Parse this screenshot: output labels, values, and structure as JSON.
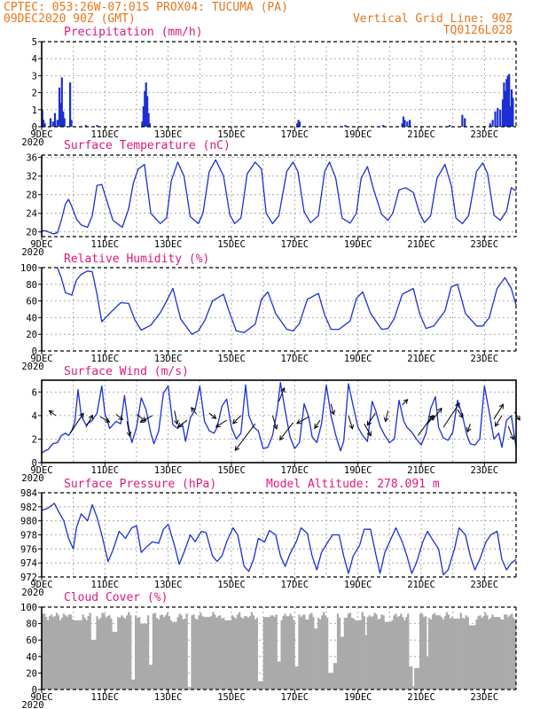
{
  "header": {
    "line1_left": "CPTEC:   053:26W-07:01S   PROX04: TUCUMA (PA)",
    "line2_left": "09DEC2020 90Z (GMT)",
    "line2_right": "Vertical Grid Line: 90Z",
    "line3_right": "TQ0126L028"
  },
  "x_axis": {
    "tick_labels": [
      "9DEC",
      "11DEC",
      "13DEC",
      "15DEC",
      "17DEC",
      "19DEC",
      "21DEC",
      "23DEC"
    ],
    "year_label": "2020",
    "range_days": [
      0,
      15
    ]
  },
  "chart_data": [
    {
      "type": "bar",
      "title": "Precipitation (mm/h)",
      "ylim": [
        0,
        5
      ],
      "yticks": [
        0,
        1,
        2,
        3,
        4,
        5
      ],
      "color": "#1b2fd6",
      "bars": [
        [
          0.02,
          1.0
        ],
        [
          0.06,
          0.4
        ],
        [
          0.1,
          0.2
        ],
        [
          0.28,
          0.5
        ],
        [
          0.36,
          0.3
        ],
        [
          0.42,
          0.8
        ],
        [
          0.5,
          0.4
        ],
        [
          0.56,
          2.3
        ],
        [
          0.6,
          1.4
        ],
        [
          0.64,
          2.9
        ],
        [
          0.68,
          0.9
        ],
        [
          0.72,
          0.5
        ],
        [
          0.9,
          2.6
        ],
        [
          0.94,
          0.4
        ],
        [
          1.4,
          0.1
        ],
        [
          1.75,
          0.1
        ],
        [
          3.18,
          0.3
        ],
        [
          3.22,
          1.2
        ],
        [
          3.26,
          2.1
        ],
        [
          3.3,
          2.6
        ],
        [
          3.34,
          1.8
        ],
        [
          3.38,
          0.8
        ],
        [
          3.42,
          0.2
        ],
        [
          8.08,
          0.2
        ],
        [
          8.12,
          0.4
        ],
        [
          8.16,
          0.3
        ],
        [
          9.6,
          0.1
        ],
        [
          10.8,
          0.1
        ],
        [
          11.4,
          0.2
        ],
        [
          11.44,
          0.6
        ],
        [
          11.48,
          0.4
        ],
        [
          11.56,
          0.3
        ],
        [
          11.64,
          0.4
        ],
        [
          12.9,
          0.1
        ],
        [
          13.3,
          0.7
        ],
        [
          13.38,
          0.5
        ],
        [
          14.18,
          0.2
        ],
        [
          14.26,
          0.4
        ],
        [
          14.34,
          0.9
        ],
        [
          14.42,
          1.1
        ],
        [
          14.5,
          1.0
        ],
        [
          14.58,
          1.6
        ],
        [
          14.62,
          2.6
        ],
        [
          14.66,
          2.1
        ],
        [
          14.7,
          2.8
        ],
        [
          14.74,
          3.0
        ],
        [
          14.78,
          3.1
        ],
        [
          14.82,
          1.2
        ],
        [
          14.86,
          2.2
        ],
        [
          14.9,
          1.7
        ]
      ]
    },
    {
      "type": "line",
      "title": "Surface Temperature (nC)",
      "ylim": [
        19,
        36.5
      ],
      "yticks": [
        20,
        24,
        28,
        32,
        36
      ],
      "color": "#1b2fd6",
      "x": [
        0,
        0.15,
        0.35,
        0.5,
        0.62,
        0.75,
        0.85,
        0.95,
        1.1,
        1.25,
        1.45,
        1.6,
        1.75,
        1.9,
        2.25,
        2.55,
        2.75,
        2.9,
        3.05,
        3.25,
        3.45,
        3.75,
        3.95,
        4.1,
        4.3,
        4.5,
        4.7,
        4.95,
        5.1,
        5.3,
        5.5,
        5.75,
        5.95,
        6.1,
        6.3,
        6.5,
        6.75,
        6.95,
        7.1,
        7.3,
        7.5,
        7.75,
        7.95,
        8.1,
        8.3,
        8.5,
        8.75,
        8.95,
        9.1,
        9.3,
        9.5,
        9.75,
        9.95,
        10.1,
        10.3,
        10.5,
        10.75,
        10.95,
        11.1,
        11.3,
        11.5,
        11.75,
        11.95,
        12.1,
        12.3,
        12.5,
        12.75,
        12.95,
        13.1,
        13.3,
        13.5,
        13.75,
        13.95,
        14.1,
        14.3,
        14.5,
        14.7,
        14.85,
        15.0
      ],
      "y": [
        20.3,
        20.2,
        19.6,
        19.8,
        22.5,
        26.0,
        27.0,
        25.5,
        22.8,
        21.5,
        21.0,
        23.5,
        30.0,
        30.2,
        22.5,
        21.0,
        25.0,
        30.5,
        33.5,
        34.5,
        24.0,
        21.8,
        23.0,
        31.0,
        35.0,
        32.0,
        23.3,
        21.8,
        24.0,
        33.0,
        35.5,
        32.0,
        23.7,
        21.8,
        23.0,
        32.5,
        35.0,
        33.5,
        24.0,
        21.8,
        23.5,
        33.0,
        35.0,
        33.0,
        24.3,
        22.0,
        23.5,
        33.0,
        35.0,
        31.5,
        23.0,
        21.9,
        24.0,
        31.5,
        34.0,
        29.0,
        23.8,
        22.5,
        24.0,
        29.0,
        29.5,
        28.5,
        24.0,
        22.0,
        23.5,
        31.5,
        34.5,
        30.0,
        23.0,
        21.8,
        23.5,
        33.0,
        34.8,
        32.5,
        23.6,
        22.5,
        24.5,
        29.5,
        28.8
      ]
    },
    {
      "type": "line",
      "title": "Relative Humidity (%)",
      "ylim": [
        0,
        100
      ],
      "yticks": [
        0,
        20,
        40,
        60,
        80,
        100
      ],
      "color": "#1b2fd6",
      "x": [
        0.5,
        0.62,
        0.75,
        0.95,
        1.1,
        1.25,
        1.45,
        1.6,
        1.75,
        1.9,
        2.2,
        2.5,
        2.75,
        2.95,
        3.15,
        3.45,
        3.75,
        3.95,
        4.15,
        4.4,
        4.75,
        4.95,
        5.15,
        5.4,
        5.75,
        5.95,
        6.15,
        6.4,
        6.75,
        6.95,
        7.15,
        7.4,
        7.75,
        7.95,
        8.15,
        8.4,
        8.75,
        8.95,
        9.15,
        9.4,
        9.75,
        9.95,
        10.15,
        10.4,
        10.75,
        10.95,
        11.15,
        11.4,
        11.75,
        11.95,
        12.15,
        12.4,
        12.75,
        12.95,
        13.15,
        13.4,
        13.75,
        13.95,
        14.15,
        14.4,
        14.65,
        14.85,
        15.0
      ],
      "y": [
        100,
        88,
        70,
        67,
        85,
        92,
        96,
        95,
        68,
        35,
        47,
        58,
        57,
        37,
        25,
        31,
        46,
        60,
        75,
        38,
        20,
        24,
        36,
        60,
        68,
        45,
        24,
        22,
        32,
        62,
        71,
        45,
        26,
        24,
        33,
        62,
        69,
        43,
        26,
        26,
        36,
        63,
        71,
        45,
        26,
        27,
        39,
        68,
        75,
        45,
        27,
        30,
        48,
        77,
        80,
        45,
        30,
        30,
        40,
        75,
        88,
        75,
        55
      ]
    },
    {
      "type": "line",
      "title": "Surface Wind (m/s)",
      "ylim": [
        0,
        7
      ],
      "yticks": [
        0,
        2,
        4,
        6
      ],
      "color": "#1b2fd6",
      "x": [
        0,
        0.1,
        0.2,
        0.35,
        0.5,
        0.62,
        0.75,
        0.85,
        0.95,
        1.05,
        1.15,
        1.25,
        1.4,
        1.5,
        1.6,
        1.75,
        1.9,
        2.0,
        2.15,
        2.35,
        2.5,
        2.62,
        2.75,
        2.85,
        3.0,
        3.15,
        3.3,
        3.45,
        3.55,
        3.7,
        3.85,
        4.0,
        4.15,
        4.3,
        4.45,
        4.55,
        4.7,
        4.85,
        5.0,
        5.15,
        5.3,
        5.45,
        5.55,
        5.7,
        5.85,
        6.0,
        6.15,
        6.3,
        6.45,
        6.55,
        6.7,
        6.85,
        7.0,
        7.15,
        7.3,
        7.45,
        7.55,
        7.7,
        7.85,
        8.0,
        8.15,
        8.3,
        8.45,
        8.55,
        8.7,
        8.85,
        9.0,
        9.15,
        9.3,
        9.45,
        9.55,
        9.7,
        9.85,
        10.0,
        10.15,
        10.3,
        10.45,
        10.55,
        10.7,
        10.85,
        11.0,
        11.15,
        11.3,
        11.45,
        11.55,
        11.7,
        11.85,
        12.0,
        12.15,
        12.3,
        12.45,
        12.55,
        12.7,
        12.85,
        13.0,
        13.15,
        13.3,
        13.45,
        13.55,
        13.7,
        13.85,
        14.0,
        14.15,
        14.3,
        14.45,
        14.55,
        14.7,
        14.85,
        15.0
      ],
      "y": [
        0.8,
        1.0,
        1.1,
        1.6,
        1.7,
        2.3,
        2.5,
        2.3,
        2.7,
        3.5,
        6.2,
        4.0,
        3.2,
        3.4,
        3.6,
        4.2,
        6.5,
        4.2,
        2.9,
        3.5,
        3.3,
        5.7,
        3.0,
        1.7,
        3.0,
        5.5,
        4.5,
        2.5,
        1.6,
        2.7,
        5.9,
        6.5,
        3.2,
        2.9,
        3.3,
        1.8,
        3.8,
        4.5,
        6.5,
        3.5,
        2.7,
        2.5,
        3.0,
        4.8,
        5.4,
        3.0,
        2.0,
        2.5,
        6.6,
        4.0,
        3.0,
        2.7,
        1.2,
        1.3,
        2.3,
        4.5,
        6.8,
        4.4,
        2.2,
        1.2,
        1.7,
        5.0,
        3.8,
        2.2,
        1.7,
        3.3,
        6.6,
        4.0,
        2.3,
        1.0,
        1.8,
        6.7,
        4.8,
        3.0,
        2.3,
        1.8,
        5.2,
        4.5,
        3.1,
        2.3,
        1.7,
        2.0,
        5.3,
        3.5,
        3.0,
        2.6,
        2.0,
        1.5,
        2.5,
        4.6,
        5.6,
        3.0,
        2.1,
        1.9,
        2.6,
        5.3,
        4.0,
        2.3,
        1.6,
        1.5,
        2.0,
        6.5,
        4.3,
        2.0,
        2.5,
        1.3,
        3.6,
        4.0,
        1.3
      ],
      "arrows": [
        [
          0.45,
          4.0,
          -0.25,
          0.18
        ],
        [
          0.9,
          2.5,
          0.5,
          0.75
        ],
        [
          1.4,
          3.0,
          0.25,
          0.45
        ],
        [
          1.85,
          3.9,
          0.35,
          -0.2
        ],
        [
          2.35,
          4.1,
          0.25,
          -0.2
        ],
        [
          2.7,
          3.5,
          0.1,
          -0.55
        ],
        [
          3.0,
          4.1,
          0.35,
          -0.25
        ],
        [
          3.5,
          4.0,
          -0.45,
          -0.25
        ],
        [
          4.2,
          4.4,
          0.1,
          -0.5
        ],
        [
          4.6,
          3.6,
          -0.35,
          -0.25
        ],
        [
          4.9,
          4.1,
          -0.2,
          0.25
        ],
        [
          5.3,
          4.2,
          0.25,
          -0.2
        ],
        [
          5.85,
          3.6,
          -0.4,
          -0.25
        ],
        [
          6.3,
          4.0,
          -0.3,
          -0.3
        ],
        [
          6.75,
          3.3,
          -0.75,
          -1.0
        ],
        [
          7.3,
          4.0,
          0.15,
          -0.5
        ],
        [
          7.5,
          5.2,
          0.2,
          0.5
        ],
        [
          7.95,
          3.4,
          -0.5,
          -0.65
        ],
        [
          8.45,
          3.9,
          -0.45,
          -0.25
        ],
        [
          8.8,
          3.6,
          -0.2,
          -0.3
        ],
        [
          9.15,
          5.0,
          0.1,
          -0.4
        ],
        [
          9.7,
          4.0,
          0.15,
          -0.5
        ],
        [
          10.2,
          3.3,
          0.25,
          -0.45
        ],
        [
          10.55,
          4.2,
          -0.3,
          -0.45
        ],
        [
          10.95,
          4.4,
          -0.1,
          -0.4
        ],
        [
          11.4,
          4.9,
          0.2,
          0.2
        ],
        [
          11.9,
          2.3,
          0.55,
          0.75
        ],
        [
          12.2,
          3.3,
          0.25,
          0.3
        ],
        [
          12.35,
          3.6,
          0.35,
          0.45
        ],
        [
          12.7,
          3.0,
          0.6,
          0.9
        ],
        [
          13.15,
          4.5,
          0.2,
          -0.3
        ],
        [
          13.55,
          3.3,
          -0.1,
          -0.3
        ],
        [
          14.3,
          3.7,
          0.35,
          0.55
        ],
        [
          14.55,
          4.0,
          -0.25,
          -0.4
        ],
        [
          14.75,
          3.1,
          0.2,
          -0.5
        ],
        [
          14.95,
          4.3,
          0.2,
          -0.3
        ]
      ]
    },
    {
      "type": "line",
      "title": "Surface Pressure (hPa)",
      "subtitle": "Model Altitude: 278.091 m",
      "ylim": [
        972,
        984
      ],
      "yticks": [
        972,
        974,
        976,
        978,
        980,
        982,
        984
      ],
      "color": "#1b2fd6",
      "x": [
        0,
        0.2,
        0.4,
        0.55,
        0.7,
        0.85,
        1.0,
        1.1,
        1.25,
        1.45,
        1.6,
        1.75,
        1.9,
        2.1,
        2.25,
        2.45,
        2.65,
        2.85,
        3.0,
        3.15,
        3.3,
        3.5,
        3.7,
        3.85,
        4.0,
        4.2,
        4.35,
        4.5,
        4.7,
        4.85,
        5.05,
        5.2,
        5.4,
        5.55,
        5.7,
        5.85,
        6.05,
        6.2,
        6.4,
        6.55,
        6.7,
        6.85,
        7.05,
        7.2,
        7.4,
        7.55,
        7.7,
        7.85,
        8.05,
        8.2,
        8.4,
        8.55,
        8.7,
        8.85,
        9.05,
        9.2,
        9.4,
        9.55,
        9.7,
        9.85,
        10.05,
        10.2,
        10.4,
        10.55,
        10.7,
        10.85,
        11.05,
        11.2,
        11.4,
        11.55,
        11.7,
        11.85,
        12.05,
        12.2,
        12.4,
        12.55,
        12.7,
        12.85,
        13.05,
        13.2,
        13.4,
        13.55,
        13.7,
        13.85,
        14.05,
        14.2,
        14.4,
        14.55,
        14.7,
        14.85,
        15.0
      ],
      "y": [
        981.5,
        981.8,
        982.5,
        981.2,
        980.0,
        977.5,
        976.0,
        979.0,
        981.0,
        980.0,
        982.3,
        980.5,
        978.0,
        974.2,
        975.8,
        978.5,
        977.5,
        979.0,
        979.3,
        975.5,
        976.2,
        977.0,
        976.8,
        978.8,
        979.5,
        976.5,
        973.8,
        975.5,
        978.0,
        977.0,
        978.5,
        978.3,
        975.0,
        974.2,
        975.0,
        977.0,
        979.0,
        978.0,
        973.5,
        972.8,
        974.5,
        977.5,
        977.0,
        978.6,
        978.0,
        975.0,
        973.5,
        975.3,
        977.0,
        979.0,
        978.2,
        975.0,
        973.0,
        975.5,
        977.0,
        978.0,
        978.0,
        975.0,
        972.5,
        975.0,
        976.5,
        978.8,
        978.8,
        975.5,
        972.5,
        975.5,
        977.5,
        979.0,
        977.0,
        975.0,
        972.5,
        974.0,
        977.0,
        978.5,
        977.0,
        976.0,
        972.3,
        973.0,
        976.0,
        979.0,
        978.0,
        975.0,
        973.0,
        974.5,
        977.0,
        978.0,
        978.5,
        974.5,
        973.0,
        974.0,
        974.5
      ]
    },
    {
      "type": "bar",
      "title": "Cloud Cover (%)",
      "ylim": [
        0,
        100
      ],
      "yticks": [
        0,
        20,
        40,
        60,
        80,
        100
      ],
      "color": "#aaaaaa",
      "base": 89,
      "jitter": 3,
      "steps": 270,
      "overrides": [
        [
          0.0,
          0.12,
          92
        ],
        [
          1.0,
          1.3,
          84
        ],
        [
          1.55,
          1.75,
          60
        ],
        [
          2.2,
          2.4,
          70
        ],
        [
          2.85,
          2.95,
          12
        ],
        [
          3.1,
          3.35,
          80
        ],
        [
          3.4,
          3.5,
          30
        ],
        [
          4.1,
          4.3,
          82
        ],
        [
          4.6,
          4.7,
          3
        ],
        [
          5.1,
          5.35,
          88
        ],
        [
          5.8,
          6.0,
          84
        ],
        [
          6.85,
          7.0,
          10
        ],
        [
          7.0,
          7.2,
          88
        ],
        [
          7.45,
          7.55,
          34
        ],
        [
          8.0,
          8.1,
          28
        ],
        [
          8.6,
          8.75,
          74
        ],
        [
          9.05,
          9.2,
          20
        ],
        [
          9.2,
          9.35,
          32
        ],
        [
          9.45,
          9.55,
          64
        ],
        [
          9.9,
          10.1,
          84
        ],
        [
          10.2,
          10.3,
          66
        ],
        [
          10.85,
          11.05,
          82
        ],
        [
          11.6,
          11.7,
          28
        ],
        [
          11.72,
          11.8,
          4
        ],
        [
          11.8,
          11.95,
          26
        ],
        [
          12.15,
          12.25,
          40
        ],
        [
          12.45,
          12.55,
          90
        ],
        [
          13.0,
          13.2,
          86
        ],
        [
          13.5,
          13.7,
          78
        ],
        [
          14.3,
          14.5,
          88
        ]
      ]
    }
  ]
}
